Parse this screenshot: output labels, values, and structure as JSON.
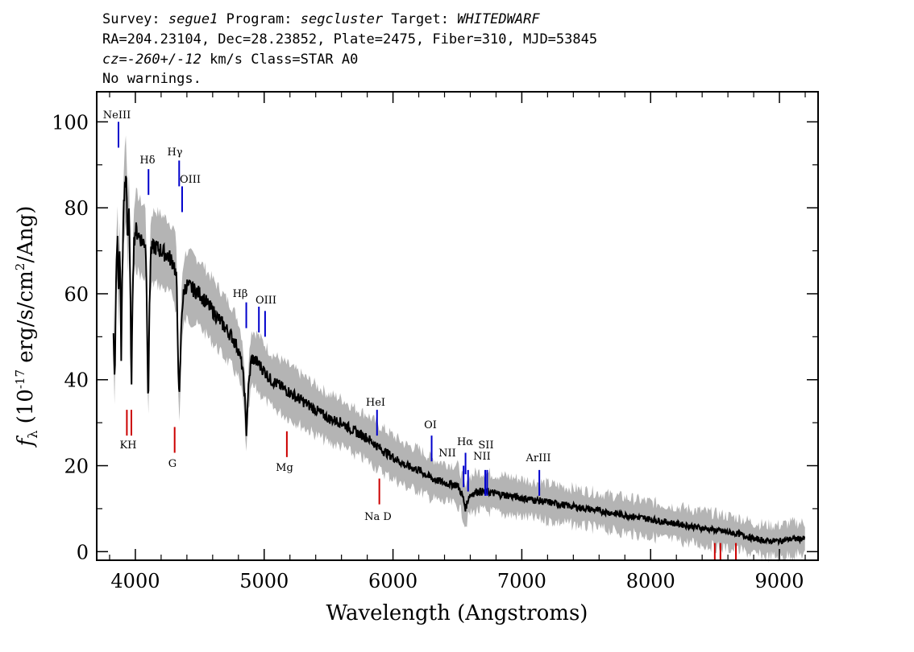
{
  "header": {
    "line1": {
      "survey_label": "Survey:",
      "survey_value": "segue1",
      "program_label": "Program:",
      "program_value": "segcluster",
      "target_label": "Target:",
      "target_value": "WHITEDWARF"
    },
    "line2": "RA=204.23104, Dec=28.23852, Plate=2475, Fiber=310, MJD=53845",
    "line3": {
      "cz_label": "cz=",
      "cz_value": "-260+/-12",
      "cz_rest": " km/s Class=STAR A0"
    },
    "line4": "No warnings."
  },
  "colors": {
    "flux": "#000000",
    "error": "#b4b4b4",
    "emission": "#0000cc",
    "absorption": "#cc0000",
    "axes": "#000000"
  },
  "chart_data": {
    "type": "line",
    "xlabel": "Wavelength (Angstroms)",
    "ylabel": "f_λ (10^-17 erg/s/cm^2/Ang)",
    "xlim": [
      3700,
      9300
    ],
    "ylim": [
      -2,
      107
    ],
    "x_ticks": [
      4000,
      5000,
      6000,
      7000,
      8000,
      9000
    ],
    "y_ticks": [
      0,
      20,
      40,
      60,
      80,
      100
    ],
    "series": [
      {
        "points": [
          [
            3830,
            52
          ],
          [
            3840,
            38
          ],
          [
            3850,
            62
          ],
          [
            3860,
            75
          ],
          [
            3870,
            60
          ],
          [
            3880,
            72
          ],
          [
            3890,
            45
          ],
          [
            3900,
            68
          ],
          [
            3910,
            80
          ],
          [
            3920,
            85
          ],
          [
            3930,
            88
          ],
          [
            3940,
            72
          ],
          [
            3950,
            80
          ],
          [
            3960,
            62
          ],
          [
            3970,
            38
          ],
          [
            3980,
            64
          ],
          [
            3990,
            72
          ],
          [
            4000,
            75
          ],
          [
            4020,
            74
          ],
          [
            4040,
            73
          ],
          [
            4060,
            72
          ],
          [
            4080,
            72
          ],
          [
            4090,
            56
          ],
          [
            4100,
            33
          ],
          [
            4110,
            58
          ],
          [
            4120,
            70
          ],
          [
            4150,
            71
          ],
          [
            4200,
            70
          ],
          [
            4250,
            69
          ],
          [
            4300,
            67
          ],
          [
            4320,
            63
          ],
          [
            4340,
            34
          ],
          [
            4360,
            56
          ],
          [
            4380,
            61
          ],
          [
            4400,
            62
          ],
          [
            4450,
            61
          ],
          [
            4500,
            60
          ],
          [
            4550,
            58
          ],
          [
            4600,
            56
          ],
          [
            4650,
            54
          ],
          [
            4700,
            52
          ],
          [
            4750,
            50
          ],
          [
            4800,
            47
          ],
          [
            4830,
            43
          ],
          [
            4850,
            36
          ],
          [
            4861,
            27
          ],
          [
            4875,
            37
          ],
          [
            4900,
            45
          ],
          [
            4950,
            44
          ],
          [
            5000,
            42
          ],
          [
            5050,
            40
          ],
          [
            5100,
            39
          ],
          [
            5150,
            38
          ],
          [
            5200,
            37
          ],
          [
            5300,
            35
          ],
          [
            5400,
            33
          ],
          [
            5500,
            31
          ],
          [
            5600,
            30
          ],
          [
            5700,
            28
          ],
          [
            5800,
            26.5
          ],
          [
            5900,
            24
          ],
          [
            6000,
            22
          ],
          [
            6100,
            20
          ],
          [
            6200,
            19
          ],
          [
            6300,
            17
          ],
          [
            6400,
            16
          ],
          [
            6500,
            15.5
          ],
          [
            6540,
            13
          ],
          [
            6563,
            10
          ],
          [
            6590,
            13
          ],
          [
            6650,
            14
          ],
          [
            6700,
            14
          ],
          [
            6800,
            13.5
          ],
          [
            6900,
            13
          ],
          [
            7000,
            12.5
          ],
          [
            7100,
            12
          ],
          [
            7200,
            11.5
          ],
          [
            7300,
            11
          ],
          [
            7400,
            10.5
          ],
          [
            7500,
            10
          ],
          [
            7600,
            9.5
          ],
          [
            7700,
            9
          ],
          [
            7800,
            8.5
          ],
          [
            7900,
            8
          ],
          [
            8000,
            7.5
          ],
          [
            8100,
            7
          ],
          [
            8200,
            6.5
          ],
          [
            8300,
            6
          ],
          [
            8400,
            5.5
          ],
          [
            8500,
            5
          ],
          [
            8600,
            4.5
          ],
          [
            8700,
            4
          ],
          [
            8800,
            3
          ],
          [
            8900,
            2.5
          ],
          [
            9000,
            2.5
          ],
          [
            9100,
            3
          ],
          [
            9200,
            3
          ]
        ]
      }
    ],
    "lines": [
      {
        "label": "NeIII",
        "wavelength": 3869,
        "y_range": [
          94,
          100
        ],
        "kind": "emission"
      },
      {
        "label": "Hδ",
        "wavelength": 4102,
        "y_range": [
          83,
          89
        ],
        "kind": "emission"
      },
      {
        "label": "Hγ",
        "wavelength": 4340,
        "y_range": [
          85,
          91
        ],
        "kind": "emission"
      },
      {
        "label": "OIII",
        "wavelength": 4363,
        "y_range": [
          79,
          85
        ],
        "kind": "emission"
      },
      {
        "label": "Hβ",
        "wavelength": 4861,
        "y_range": [
          52,
          58
        ],
        "kind": "emission"
      },
      {
        "label": "OIII",
        "wavelength": 4959,
        "y_range": [
          51,
          57
        ],
        "kind": "emission"
      },
      {
        "label": "OIII",
        "wavelength": 5007,
        "y_range": [
          50,
          56
        ],
        "kind": "emission"
      },
      {
        "label": "HeI",
        "wavelength": 5876,
        "y_range": [
          27,
          33
        ],
        "kind": "emission"
      },
      {
        "label": "OI",
        "wavelength": 6300,
        "y_range": [
          21,
          27
        ],
        "kind": "emission"
      },
      {
        "label": "NII",
        "wavelength": 6548,
        "y_range": [
          15,
          20
        ],
        "kind": "emission"
      },
      {
        "label": "Hα",
        "wavelength": 6563,
        "y_range": [
          18,
          23
        ],
        "kind": "emission"
      },
      {
        "label": "NII",
        "wavelength": 6583,
        "y_range": [
          14,
          19
        ],
        "kind": "emission"
      },
      {
        "label": "SII",
        "wavelength": 6716,
        "y_range": [
          13,
          19
        ],
        "kind": "emission"
      },
      {
        "label": "SII",
        "wavelength": 6731,
        "y_range": [
          13,
          19
        ],
        "kind": "emission"
      },
      {
        "label": "ArIII",
        "wavelength": 7136,
        "y_range": [
          13,
          19
        ],
        "kind": "emission"
      },
      {
        "label": "K",
        "wavelength": 3934,
        "y_range": [
          27,
          33
        ],
        "kind": "absorption"
      },
      {
        "label": "H",
        "wavelength": 3969,
        "y_range": [
          27,
          33
        ],
        "kind": "absorption"
      },
      {
        "label": "G",
        "wavelength": 4305,
        "y_range": [
          23,
          29
        ],
        "kind": "absorption"
      },
      {
        "label": "Mg",
        "wavelength": 5176,
        "y_range": [
          22,
          28
        ],
        "kind": "absorption"
      },
      {
        "label": "Na D",
        "wavelength": 5894,
        "y_range": [
          11,
          17
        ],
        "kind": "absorption"
      },
      {
        "label": "",
        "wavelength": 8498,
        "y_range": [
          -2,
          2
        ],
        "kind": "absorption"
      },
      {
        "label": "",
        "wavelength": 8542,
        "y_range": [
          -2,
          2
        ],
        "kind": "absorption"
      },
      {
        "label": "",
        "wavelength": 8662,
        "y_range": [
          -2,
          2
        ],
        "kind": "absorption"
      }
    ],
    "line_label_texts": {
      "neiii": "NeIII",
      "hdelta": "Hδ",
      "hgamma": "Hγ",
      "oiii_a": "OIII",
      "hbeta": "Hβ",
      "oiii_b": "OIII",
      "hei": "HeI",
      "oi": "OI",
      "nii_a": "NII",
      "halpha": "Hα",
      "nii_b": "NII",
      "sii": "SII",
      "ariii": "ArIII",
      "kh": "KH",
      "g": "G",
      "mg": "Mg",
      "nad": "Na D"
    },
    "grid": false,
    "legend": "none"
  }
}
